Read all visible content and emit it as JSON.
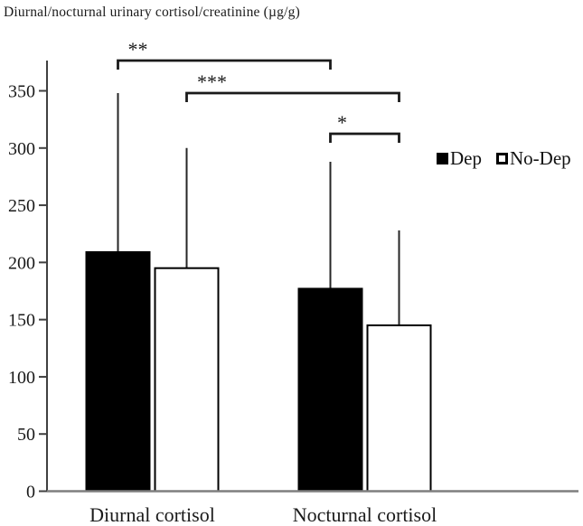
{
  "chart_data": {
    "type": "bar",
    "title": "Diurnal/nocturnal urinary cortisol/creatinine (µg/g)",
    "categories": [
      "Diurnal cortisol",
      "Nocturnal cortisol"
    ],
    "series": [
      {
        "name": "Dep",
        "fill": "#000000",
        "values": [
          209,
          177
        ],
        "errors_up": [
          139,
          111
        ]
      },
      {
        "name": "No-Dep",
        "fill": "#ffffff",
        "values": [
          195,
          145
        ],
        "errors_up": [
          105,
          83
        ]
      }
    ],
    "xlabel": "",
    "ylabel": "",
    "ylim": [
      0,
      376
    ],
    "y_ticks": [
      0,
      50,
      100,
      150,
      200,
      250,
      300,
      350
    ],
    "grid": false,
    "legend_position": "right-upper",
    "error_bars": "upper-only, no caps",
    "significance": [
      {
        "label": "**",
        "from": {
          "series": 0,
          "category": 0
        },
        "to": {
          "series": 0,
          "category": 1
        }
      },
      {
        "label": "***",
        "from": {
          "series": 1,
          "category": 0
        },
        "to": {
          "series": 1,
          "category": 1
        }
      },
      {
        "label": "*",
        "from": {
          "series": 0,
          "category": 1
        },
        "to": {
          "series": 1,
          "category": 1
        }
      }
    ]
  },
  "colors": {
    "bar_dep_fill": "#000000",
    "bar_nodep_fill": "#ffffff",
    "bar_border": "#000000",
    "y_axis": "#404040",
    "x_axis": "#7f7f7f",
    "error_bar": "#262626",
    "bracket": "#1a1a1a",
    "text": "#1a1a1a"
  }
}
